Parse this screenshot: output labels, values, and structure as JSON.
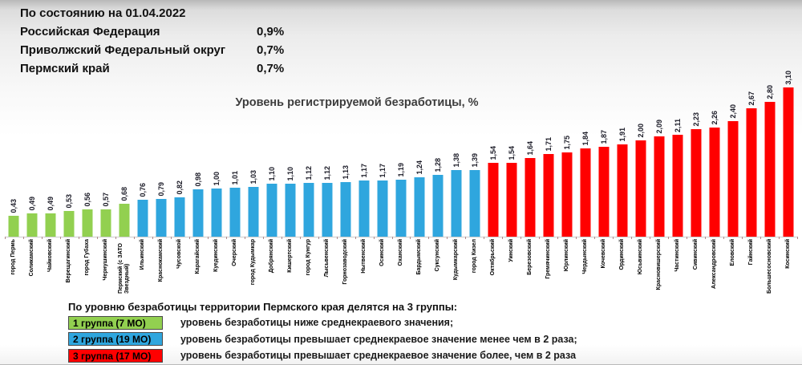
{
  "header": {
    "date_line": "По состоянию на 01.04.2022",
    "rows": [
      {
        "label": "Российская Федерация",
        "value": "0,9%"
      },
      {
        "label": "Приволжский Федеральный округ",
        "value": "0,7%"
      },
      {
        "label": "Пермский край",
        "value": "0,7%"
      }
    ]
  },
  "chart_data": {
    "type": "bar",
    "title": "Уровень регистрируемой безработицы, %",
    "xlabel": "",
    "ylabel": "",
    "unit": "%",
    "ylim": [
      0,
      3.2
    ],
    "grid": false,
    "legend_position": "bottom-left",
    "categories": [
      "город Пермь",
      "Соликамский",
      "Чайковский",
      "Верещагинский",
      "город Губаха",
      "Чернушинский",
      "Пермский (с ЗАТО Звездный)",
      "Ильинский",
      "Краснокамский",
      "Чусовской",
      "Карагайский",
      "Куединский",
      "Очерский",
      "город Кудымкар",
      "Добрянский",
      "Кишертский",
      "город Кунгур",
      "Лысьвенский",
      "Горнозаводский",
      "Нытвенский",
      "Осинский",
      "Оханский",
      "Бардымский",
      "Суксунский",
      "Кудымкарский",
      "город Кизел",
      "Октябрьский",
      "Уинский",
      "Березовский",
      "Гремячинский",
      "Юрлинский",
      "Чердынский",
      "Кочевский",
      "Ординский",
      "Юсьвинский",
      "Красновишерский",
      "Частинский",
      "Сивинский",
      "Александровский",
      "Еловский",
      "Гайнский",
      "Большесосновский",
      "Косинский"
    ],
    "values": [
      0.43,
      0.49,
      0.49,
      0.53,
      0.56,
      0.57,
      0.68,
      0.76,
      0.79,
      0.82,
      0.98,
      1.0,
      1.01,
      1.03,
      1.1,
      1.1,
      1.12,
      1.12,
      1.13,
      1.17,
      1.17,
      1.19,
      1.24,
      1.28,
      1.38,
      1.39,
      1.54,
      1.54,
      1.64,
      1.71,
      1.75,
      1.84,
      1.87,
      1.91,
      2.0,
      2.09,
      2.11,
      2.23,
      2.26,
      2.4,
      2.67,
      2.8,
      3.1
    ],
    "value_labels": [
      "0,43",
      "0,49",
      "0,49",
      "0,53",
      "0,56",
      "0,57",
      "0,68",
      "0,76",
      "0,79",
      "0,82",
      "0,98",
      "1,00",
      "1,01",
      "1,03",
      "1,10",
      "1,10",
      "1,12",
      "1,12",
      "1,13",
      "1,17",
      "1,17",
      "1,19",
      "1,24",
      "1,28",
      "1,38",
      "1,39",
      "1,54",
      "1,54",
      "1,64",
      "1,71",
      "1,75",
      "1,84",
      "1,87",
      "1,91",
      "2,00",
      "2,09",
      "2,11",
      "2,23",
      "2,26",
      "2,40",
      "2,67",
      "2,80",
      "3,10"
    ],
    "group_of_bar": [
      1,
      1,
      1,
      1,
      1,
      1,
      1,
      2,
      2,
      2,
      2,
      2,
      2,
      2,
      2,
      2,
      2,
      2,
      2,
      2,
      2,
      2,
      2,
      2,
      2,
      2,
      3,
      3,
      3,
      3,
      3,
      3,
      3,
      3,
      3,
      3,
      3,
      3,
      3,
      3,
      3,
      3,
      3
    ],
    "group_colors": {
      "1": "#92D050",
      "2": "#2FA6DE",
      "3": "#FF0000"
    }
  },
  "legend": {
    "header": "По уровню безработицы территории Пермского края делятся на 3 группы:",
    "items": [
      {
        "label": "1 группа (7  МО)",
        "color": "#92D050",
        "description": "уровень безработицы ниже среднекраевого значения;"
      },
      {
        "label": "2 группа  (19 МО)",
        "color": "#2FA6DE",
        "description": "уровень безработицы превышает среднекраевое значение менее чем в 2 раза;"
      },
      {
        "label": "3 группа  (17 МО)",
        "color": "#FF0000",
        "description": "уровень безработицы превышает среднекраевое значение более, чем в 2 раза"
      }
    ]
  }
}
